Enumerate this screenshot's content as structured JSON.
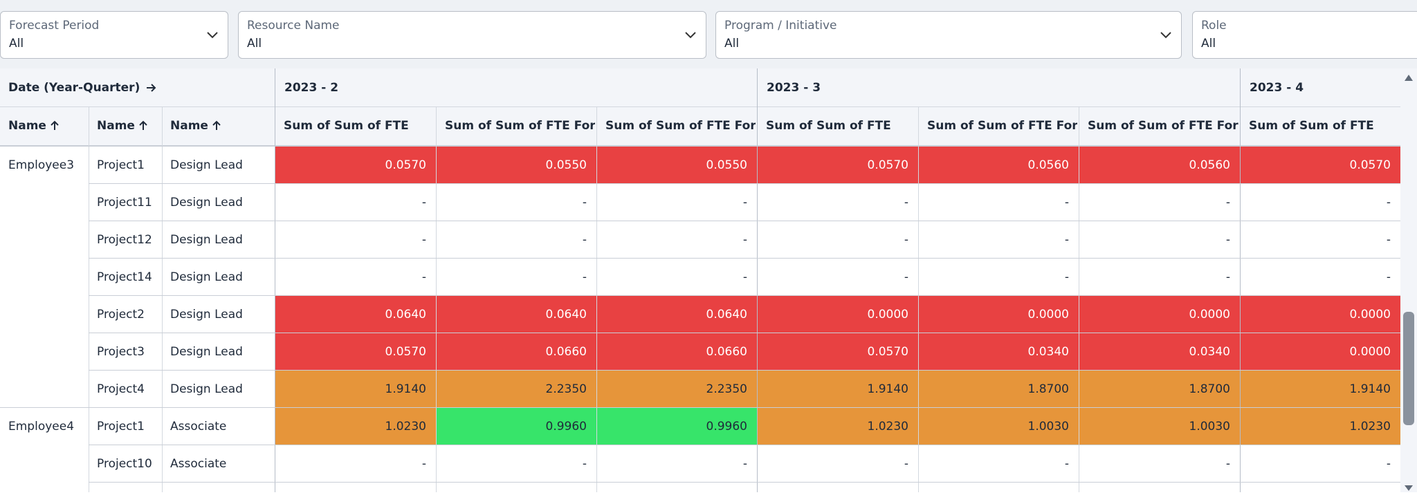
{
  "filters": [
    {
      "label": "Forecast Period",
      "value": "All"
    },
    {
      "label": "Resource Name",
      "value": "All"
    },
    {
      "label": "Program / Initiative",
      "value": "All"
    },
    {
      "label": "Role",
      "value": "All"
    }
  ],
  "table": {
    "corner_label": "Date (Year-Quarter)",
    "row_headers": [
      "Name",
      "Name",
      "Name"
    ],
    "quarters": [
      "2023 - 2",
      "2023 - 3",
      "2023 - 4"
    ],
    "columns": [
      "Sum of Sum of FTE",
      "Sum of Sum of FTE Fore",
      "Sum of Sum of FTE Fore",
      "Sum of Sum of FTE",
      "Sum of Sum of FTE Fore",
      "Sum of Sum of FTE Fore",
      "Sum of Sum of FTE"
    ],
    "rows": [
      {
        "employee": "Employee3",
        "project": "Project1",
        "role": "Design Lead",
        "values": [
          "0.0570",
          "0.0550",
          "0.0550",
          "0.0570",
          "0.0560",
          "0.0560",
          "0.0570"
        ],
        "colors": [
          "#e84142",
          "#e84142",
          "#e84142",
          "#e84142",
          "#e84142",
          "#e84142",
          "#e84142"
        ]
      },
      {
        "project": "Project11",
        "role": "Design Lead",
        "values": [
          "-",
          "-",
          "-",
          "-",
          "-",
          "-",
          "-"
        ],
        "colors": [
          null,
          null,
          null,
          null,
          null,
          null,
          null
        ]
      },
      {
        "project": "Project12",
        "role": "Design Lead",
        "values": [
          "-",
          "-",
          "-",
          "-",
          "-",
          "-",
          "-"
        ],
        "colors": [
          null,
          null,
          null,
          null,
          null,
          null,
          null
        ]
      },
      {
        "project": "Project14",
        "role": "Design Lead",
        "values": [
          "-",
          "-",
          "-",
          "-",
          "-",
          "-",
          "-"
        ],
        "colors": [
          null,
          null,
          null,
          null,
          null,
          null,
          null
        ]
      },
      {
        "project": "Project2",
        "role": "Design Lead",
        "values": [
          "0.0640",
          "0.0640",
          "0.0640",
          "0.0000",
          "0.0000",
          "0.0000",
          "0.0000"
        ],
        "colors": [
          "#e84142",
          "#e84142",
          "#e84142",
          "#e84142",
          "#e84142",
          "#e84142",
          "#e84142"
        ]
      },
      {
        "project": "Project3",
        "role": "Design Lead",
        "values": [
          "0.0570",
          "0.0660",
          "0.0660",
          "0.0570",
          "0.0340",
          "0.0340",
          "0.0000"
        ],
        "colors": [
          "#e84142",
          "#e84142",
          "#e84142",
          "#e84142",
          "#e84142",
          "#e84142",
          "#e84142"
        ]
      },
      {
        "project": "Project4",
        "role": "Design Lead",
        "values": [
          "1.9140",
          "2.2350",
          "2.2350",
          "1.9140",
          "1.8700",
          "1.8700",
          "1.9140"
        ],
        "colors": [
          "#e6953a",
          "#e6953a",
          "#e6953a",
          "#e6953a",
          "#e6953a",
          "#e6953a",
          "#e6953a"
        ]
      },
      {
        "employee": "Employee4",
        "project": "Project1",
        "role": "Associate",
        "values": [
          "1.0230",
          "0.9960",
          "0.9960",
          "1.0230",
          "1.0030",
          "1.0030",
          "1.0230"
        ],
        "colors": [
          "#e6953a",
          "#37e46a",
          "#37e46a",
          "#e6953a",
          "#e6953a",
          "#e6953a",
          "#e6953a"
        ]
      },
      {
        "project": "Project10",
        "role": "Associate",
        "values": [
          "-",
          "-",
          "-",
          "-",
          "-",
          "-",
          "-"
        ],
        "colors": [
          null,
          null,
          null,
          null,
          null,
          null,
          null
        ]
      }
    ]
  }
}
